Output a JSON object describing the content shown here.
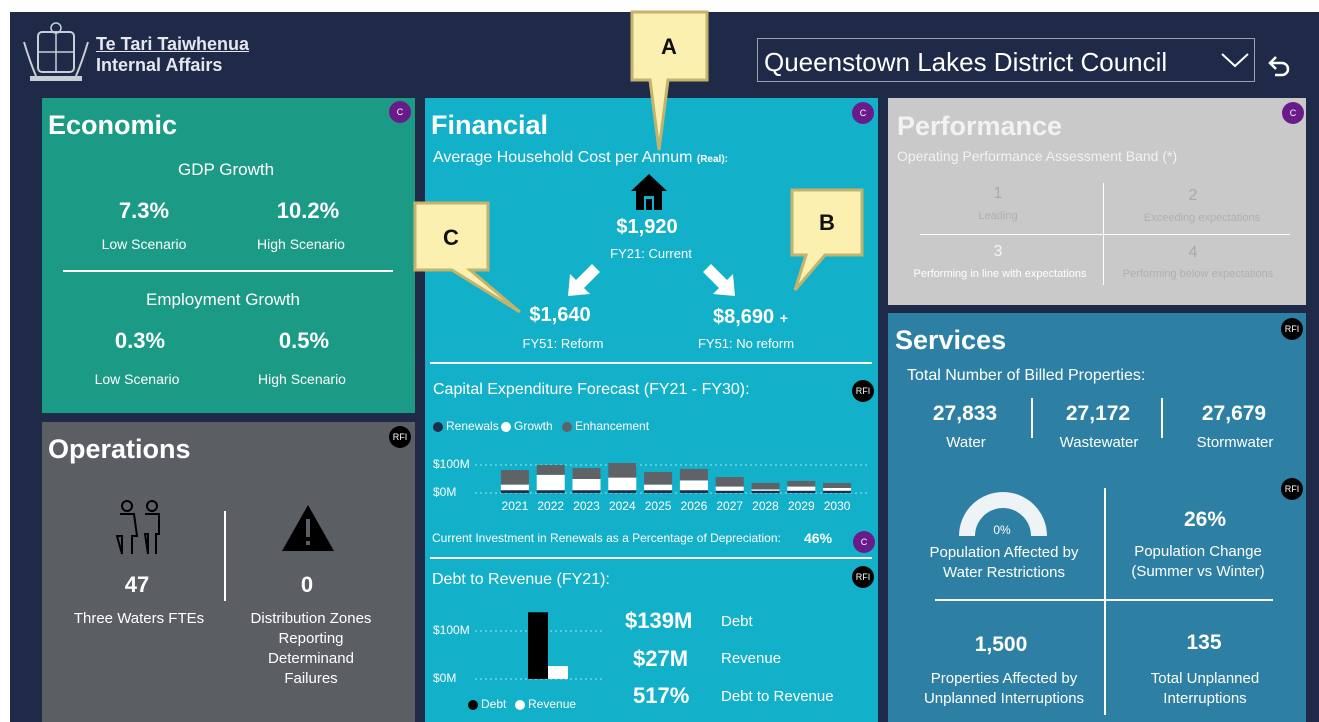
{
  "header": {
    "logo_line1": "Te Tari Taiwhenua",
    "logo_line2": "Internal Affairs",
    "dropdown": "Queenstown Lakes District Council"
  },
  "callouts": [
    "A",
    "B",
    "C"
  ],
  "economic": {
    "title": "Economic",
    "badge": "C",
    "gdp": {
      "heading": "GDP Growth",
      "items": [
        {
          "value": "7.3%",
          "label": "Low Scenario"
        },
        {
          "value": "10.2%",
          "label": "High Scenario"
        }
      ]
    },
    "employment": {
      "heading": "Employment Growth",
      "items": [
        {
          "value": "0.3%",
          "label": "Low Scenario"
        },
        {
          "value": "0.5%",
          "label": "High Scenario"
        }
      ]
    }
  },
  "operations": {
    "title": "Operations",
    "badge": "RFI",
    "items": [
      {
        "value": 47,
        "label": "Three Waters FTEs"
      },
      {
        "value": 0,
        "label": "Distribution Zones Reporting Determinand Failures"
      }
    ]
  },
  "financial": {
    "title": "Financial",
    "badge": "C",
    "household": {
      "heading": "Average Household Cost per Annum",
      "qualifier": "(Real):",
      "current": {
        "value": "$1,920",
        "label": "FY21: Current"
      },
      "reform": {
        "value": "$1,640",
        "label": "FY51: Reform"
      },
      "no_reform": {
        "value": "$8,690",
        "suffix": "+",
        "label": "FY51: No reform"
      }
    },
    "capex": {
      "heading": "Capital Expenditure Forecast (FY21 - FY30):",
      "badge": "RFI",
      "investment_label": "Current Investment in Renewals as a Percentage of Depreciation:",
      "investment_value": "46%",
      "investment_badge": "C"
    },
    "debt": {
      "heading": "Debt to Revenue (FY21):",
      "badge": "RFI",
      "summary": [
        {
          "value": "$139M",
          "label": "Debt"
        },
        {
          "value": "$27M",
          "label": "Revenue"
        },
        {
          "value": "517%",
          "label": "Debt to Revenue"
        }
      ]
    }
  },
  "performance": {
    "title": "Performance",
    "badge": "C",
    "subtitle": "Operating Performance Assessment Band (*)",
    "bands": [
      {
        "number": "1",
        "label": "Leading"
      },
      {
        "number": "2",
        "label": "Exceeding expectations"
      },
      {
        "number": "3",
        "label": "Performing in line with expectations"
      },
      {
        "number": "4",
        "label": "Performing below expectations"
      }
    ]
  },
  "services": {
    "title": "Services",
    "badge": "RFI",
    "heading": "Total Number of Billed Properties:",
    "billed": [
      {
        "value": "27,833",
        "label": "Water"
      },
      {
        "value": "27,172",
        "label": "Wastewater"
      },
      {
        "value": "27,679",
        "label": "Stormwater"
      }
    ],
    "badge2": "RFI",
    "gauge": {
      "value": "0%",
      "label": "Population Affected by Water Restrictions"
    },
    "metrics": [
      {
        "value": "26%",
        "label": "Population Change (Summer vs Winter)"
      },
      {
        "value": "1,500",
        "label": "Properties Affected by Unplanned Interruptions"
      },
      {
        "value": "135",
        "label": "Total Unplanned Interruptions"
      }
    ]
  },
  "chart_data": [
    {
      "type": "stacked_bar",
      "categories": [
        "2021",
        "2022",
        "2023",
        "2024",
        "2025",
        "2026",
        "2027",
        "2028",
        "2029",
        "2030"
      ],
      "series": [
        {
          "name": "Renewals",
          "color": "#1f2d4d",
          "values": [
            10,
            10,
            10,
            10,
            10,
            10,
            8,
            8,
            8,
            8
          ]
        },
        {
          "name": "Growth",
          "color": "#ffffff",
          "values": [
            20,
            55,
            40,
            45,
            20,
            35,
            15,
            5,
            15,
            10
          ]
        },
        {
          "name": "Enhancement",
          "color": "#5f6368",
          "values": [
            52,
            35,
            39,
            52,
            45,
            41,
            34,
            23,
            20,
            18
          ]
        }
      ],
      "ylim": [
        0,
        110
      ],
      "yticks": [
        {
          "value": 0,
          "label": "$0M"
        },
        {
          "value": 100,
          "label": "$100M"
        }
      ],
      "grid": true
    },
    {
      "type": "bar",
      "series": [
        {
          "name": "Debt",
          "color": "#000000",
          "values": [
            139
          ]
        },
        {
          "name": "Revenue",
          "color": "#ffffff",
          "values": [
            27
          ]
        }
      ],
      "ylim": [
        0,
        150
      ],
      "yticks": [
        {
          "value": 0,
          "label": "$0M"
        },
        {
          "value": 100,
          "label": "$100M"
        }
      ],
      "grid": true
    }
  ]
}
